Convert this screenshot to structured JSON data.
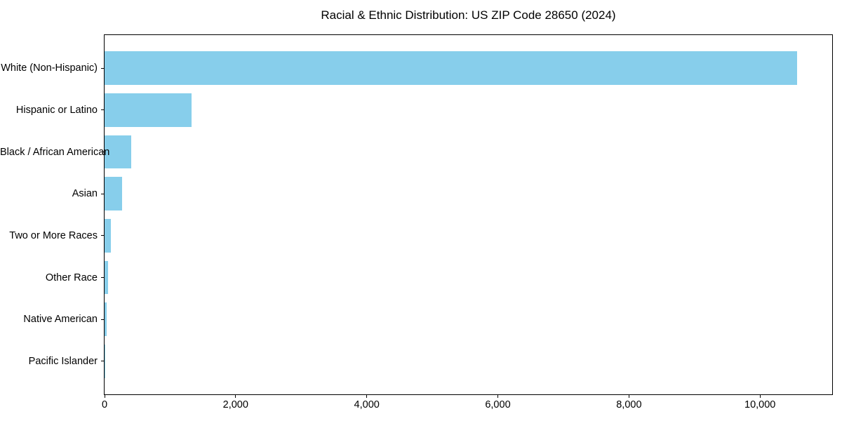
{
  "chart_data": {
    "type": "bar",
    "orientation": "horizontal",
    "title": "Racial & Ethnic Distribution: US ZIP Code 28650 (2024)",
    "xlabel": "",
    "ylabel": "",
    "categories": [
      "White (Non-Hispanic)",
      "Hispanic or Latino",
      "Black / African American",
      "Asian",
      "Two or More Races",
      "Other Race",
      "Native American",
      "Pacific Islander"
    ],
    "values": [
      10565,
      1330,
      405,
      270,
      95,
      50,
      30,
      5
    ],
    "xlim": [
      0,
      11100
    ],
    "x_ticks": [
      0,
      2000,
      4000,
      6000,
      8000,
      10000
    ],
    "x_tick_labels": [
      "0",
      "2,000",
      "4,000",
      "6,000",
      "8,000",
      "10,000"
    ],
    "bar_color": "#87CEEB",
    "axis_color": "#000000",
    "grid": false,
    "legend": null
  }
}
